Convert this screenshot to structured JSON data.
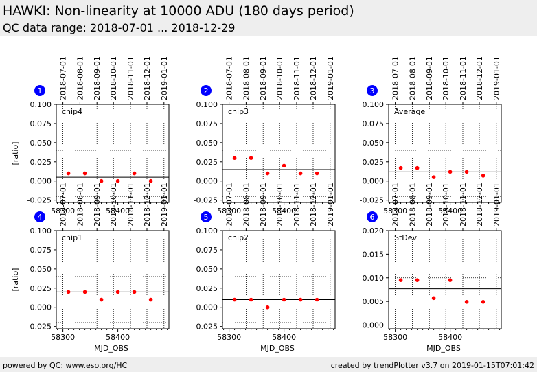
{
  "header": {
    "title": "HAWKI: Non-linearity at 10000 ADU (180 days period)",
    "subtitle": "QC data range: 2018-07-01 ... 2018-12-29"
  },
  "footer": {
    "left": "powered by QC: www.eso.org/HC",
    "right": "created by trendPlotter v3.7 on 2019-01-15T07:01:42"
  },
  "colors": {
    "point": "#ff0000",
    "badge": "#0000ff",
    "header_bg": "#eeeeee"
  },
  "chart_data": [
    {
      "id": 1,
      "type": "scatter",
      "label": "chip4",
      "badge": "1",
      "ylabel": "[ratio]",
      "xlabel": "",
      "ylim": [
        -0.028,
        0.1
      ],
      "yticks": [
        "0.100",
        "0.075",
        "0.050",
        "0.025",
        "0.000",
        "-0.025"
      ],
      "ytick_values": [
        0.1,
        0.075,
        0.05,
        0.025,
        0.0,
        -0.025
      ],
      "x": [
        58310,
        58340,
        58370,
        58400,
        58430,
        58460
      ],
      "y": [
        0.01,
        0.01,
        0.0,
        0.0,
        0.01,
        0.0
      ],
      "mean": 0.005,
      "upper_limit": 0.04,
      "lower_limit": -0.02
    },
    {
      "id": 2,
      "type": "scatter",
      "label": "chip3",
      "badge": "2",
      "ylabel": "",
      "xlabel": "",
      "ylim": [
        -0.028,
        0.1
      ],
      "yticks": [
        "0.100",
        "0.075",
        "0.050",
        "0.025",
        "0.000",
        "-0.025"
      ],
      "ytick_values": [
        0.1,
        0.075,
        0.05,
        0.025,
        0.0,
        -0.025
      ],
      "x": [
        58310,
        58340,
        58370,
        58400,
        58430,
        58460
      ],
      "y": [
        0.03,
        0.03,
        0.01,
        0.02,
        0.01,
        0.01
      ],
      "mean": 0.015,
      "upper_limit": 0.04,
      "lower_limit": -0.02
    },
    {
      "id": 3,
      "type": "scatter",
      "label": "Average",
      "badge": "3",
      "ylabel": "",
      "xlabel": "",
      "ylim": [
        -0.028,
        0.1
      ],
      "yticks": [
        "0.100",
        "0.075",
        "0.050",
        "0.025",
        "0.000",
        "-0.025"
      ],
      "ytick_values": [
        0.1,
        0.075,
        0.05,
        0.025,
        0.0,
        -0.025
      ],
      "x": [
        58310,
        58340,
        58370,
        58400,
        58430,
        58460
      ],
      "y": [
        0.017,
        0.017,
        0.005,
        0.012,
        0.012,
        0.007
      ],
      "mean": 0.012,
      "upper_limit": 0.04,
      "lower_limit": -0.02
    },
    {
      "id": 4,
      "type": "scatter",
      "label": "chip1",
      "badge": "4",
      "ylabel": "[ratio]",
      "xlabel": "MJD_OBS",
      "ylim": [
        -0.028,
        0.1
      ],
      "yticks": [
        "0.100",
        "0.075",
        "0.050",
        "0.025",
        "0.000",
        "-0.025"
      ],
      "ytick_values": [
        0.1,
        0.075,
        0.05,
        0.025,
        0.0,
        -0.025
      ],
      "x": [
        58310,
        58340,
        58370,
        58400,
        58430,
        58460
      ],
      "y": [
        0.02,
        0.02,
        0.01,
        0.02,
        0.02,
        0.01
      ],
      "mean": 0.02,
      "upper_limit": 0.04,
      "lower_limit": -0.02
    },
    {
      "id": 5,
      "type": "scatter",
      "label": "chip2",
      "badge": "5",
      "ylabel": "",
      "xlabel": "MJD_OBS",
      "ylim": [
        -0.028,
        0.1
      ],
      "yticks": [
        "0.100",
        "0.075",
        "0.050",
        "0.025",
        "0.000",
        "-0.025"
      ],
      "ytick_values": [
        0.1,
        0.075,
        0.05,
        0.025,
        0.0,
        -0.025
      ],
      "x": [
        58310,
        58340,
        58370,
        58400,
        58430,
        58460
      ],
      "y": [
        0.01,
        0.01,
        0.0,
        0.01,
        0.01,
        0.01
      ],
      "mean": 0.01,
      "upper_limit": 0.04,
      "lower_limit": -0.02
    },
    {
      "id": 6,
      "type": "scatter",
      "label": "StDev",
      "badge": "6",
      "ylabel": "",
      "xlabel": "MJD_OBS",
      "ylim": [
        -0.0008,
        0.02
      ],
      "yticks": [
        "0.020",
        "0.015",
        "0.010",
        "0.005",
        "0.000"
      ],
      "ytick_values": [
        0.02,
        0.015,
        0.01,
        0.005,
        0.0
      ],
      "x": [
        58310,
        58340,
        58370,
        58400,
        58430,
        58460
      ],
      "y": [
        0.0095,
        0.0095,
        0.0057,
        0.0095,
        0.0049,
        0.0049
      ],
      "mean": 0.0077,
      "upper_limit": 0.01,
      "lower_limit": 0.0
    }
  ],
  "x_axis": {
    "xlim": [
      58288,
      58493
    ],
    "major_ticks": [
      58300,
      58400
    ],
    "major_labels": [
      "58300",
      "58400"
    ],
    "date_ticks": [
      58300,
      58331,
      58362,
      58392,
      58423,
      58453,
      58484
    ],
    "date_labels": [
      "2018-07-01",
      "2018-08-01",
      "2018-09-01",
      "2018-10-01",
      "2018-11-01",
      "2018-12-01",
      "2019-01-01"
    ]
  }
}
